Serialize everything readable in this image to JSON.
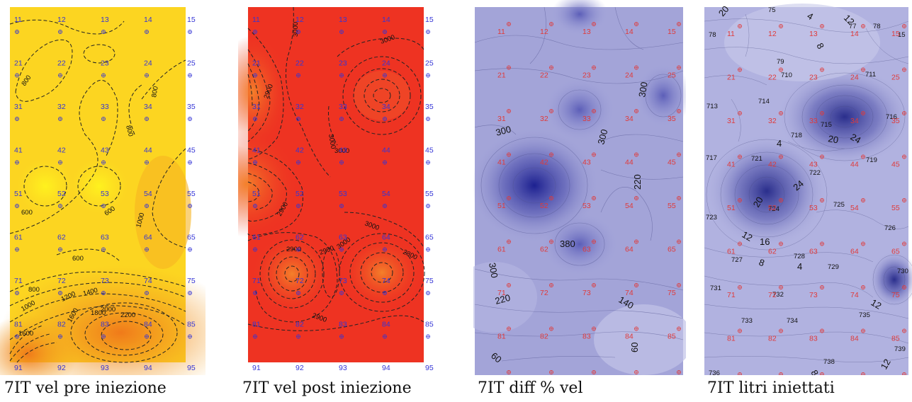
{
  "panels": [
    {
      "id": "pre",
      "caption": "7IT vel pre iniezione",
      "label_color": "#3535d6",
      "contour_labels": [
        "800",
        "800",
        "800",
        "600",
        "1000",
        "600",
        "600",
        "800",
        "1000",
        "1200",
        "1400",
        "1600",
        "1800",
        "2000",
        "2200",
        "1600"
      ]
    },
    {
      "id": "post",
      "caption": "7IT vel post iniezione",
      "label_color": "#3535d6",
      "contour_labels": [
        "3000",
        "3000",
        "3000",
        "2900",
        "3000",
        "3000",
        "2900",
        "3000",
        "2900",
        "2900",
        "2800",
        "2900"
      ]
    },
    {
      "id": "diff",
      "caption": "7IT diff % vel",
      "label_color": "#e03a3a",
      "contour_labels": [
        "300",
        "300",
        "300",
        "220",
        "380",
        "300",
        "220",
        "140",
        "60",
        "60"
      ]
    },
    {
      "id": "litri",
      "caption": "7IT litri iniettati",
      "label_color": "#e03a3a",
      "contour_labels": [
        "20",
        "75",
        "4",
        "12",
        "77",
        "78",
        "78",
        "15",
        "79",
        "710",
        "8",
        "711",
        "713",
        "714",
        "715",
        "716",
        "718",
        "20",
        "24",
        "4",
        "717",
        "721",
        "719",
        "722",
        "24",
        "20",
        "724",
        "725",
        "723",
        "726",
        "12",
        "16",
        "728",
        "727",
        "8",
        "4",
        "729",
        "730",
        "731",
        "732",
        "733",
        "734",
        "735",
        "12",
        "736",
        "738",
        "739",
        "12",
        "8"
      ]
    }
  ],
  "grid_labels": [
    "11",
    "12",
    "13",
    "14",
    "15",
    "21",
    "22",
    "23",
    "24",
    "25",
    "31",
    "32",
    "33",
    "34",
    "35",
    "41",
    "42",
    "43",
    "44",
    "45",
    "51",
    "52",
    "53",
    "54",
    "55",
    "61",
    "62",
    "63",
    "64",
    "65",
    "71",
    "72",
    "73",
    "74",
    "75",
    "81",
    "82",
    "83",
    "84",
    "85",
    "91",
    "92",
    "93",
    "94",
    "95"
  ]
}
